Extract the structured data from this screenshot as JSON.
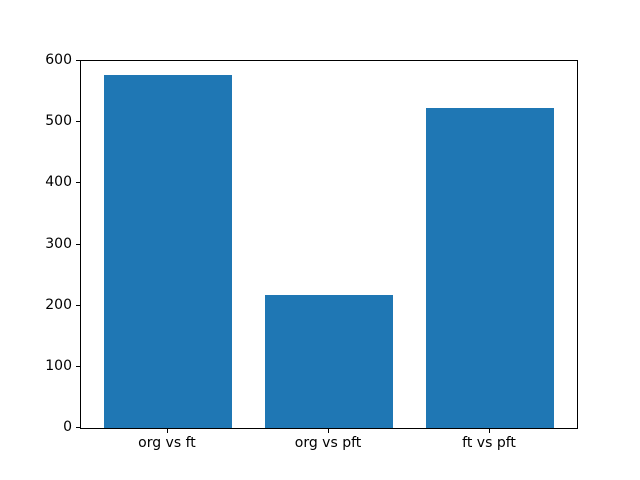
{
  "chart_data": {
    "type": "bar",
    "title": "",
    "xlabel": "",
    "ylabel": "",
    "categories": [
      "org vs ft",
      "org vs pft",
      "ft vs pft"
    ],
    "values": [
      577,
      217,
      523
    ],
    "ylim": [
      0,
      600
    ],
    "yticks": [
      0,
      100,
      200,
      300,
      400,
      500,
      600
    ],
    "bar_color": "#1f77b4",
    "axis_color": "#000000",
    "background_color": "#ffffff",
    "grid": false,
    "legend": null
  }
}
